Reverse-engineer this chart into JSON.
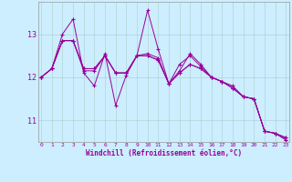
{
  "xlabel": "Windchill (Refroidissement éolien,°C)",
  "background_color": "#cceeff",
  "line_color": "#990099",
  "x_ticks": [
    0,
    1,
    2,
    3,
    4,
    5,
    6,
    7,
    8,
    9,
    10,
    11,
    12,
    13,
    14,
    15,
    16,
    17,
    18,
    19,
    20,
    21,
    22,
    23
  ],
  "y_ticks": [
    11,
    12,
    13
  ],
  "ylim": [
    10.5,
    13.75
  ],
  "xlim": [
    -0.3,
    23.3
  ],
  "series": [
    [
      12.0,
      12.2,
      13.0,
      13.35,
      12.1,
      11.8,
      12.55,
      11.35,
      12.05,
      12.5,
      13.55,
      12.65,
      11.85,
      12.3,
      12.5,
      12.25,
      12.0,
      11.9,
      11.75,
      11.55,
      11.5,
      10.75,
      10.7,
      10.6
    ],
    [
      12.0,
      12.2,
      12.85,
      12.85,
      12.15,
      12.15,
      12.5,
      12.1,
      12.1,
      12.5,
      12.55,
      12.45,
      11.85,
      12.15,
      12.55,
      12.3,
      12.0,
      11.9,
      11.8,
      11.55,
      11.5,
      10.75,
      10.7,
      10.6
    ],
    [
      12.0,
      12.2,
      12.85,
      12.85,
      12.2,
      12.2,
      12.5,
      12.1,
      12.1,
      12.5,
      12.5,
      12.4,
      11.85,
      12.1,
      12.3,
      12.2,
      12.0,
      11.9,
      11.75,
      11.55,
      11.5,
      10.75,
      10.7,
      10.55
    ],
    [
      12.0,
      12.2,
      12.85,
      12.85,
      12.2,
      12.2,
      12.5,
      12.1,
      12.1,
      12.5,
      12.5,
      12.4,
      11.85,
      12.1,
      12.3,
      12.2,
      12.0,
      11.9,
      11.75,
      11.55,
      11.5,
      10.75,
      10.7,
      10.55
    ]
  ]
}
